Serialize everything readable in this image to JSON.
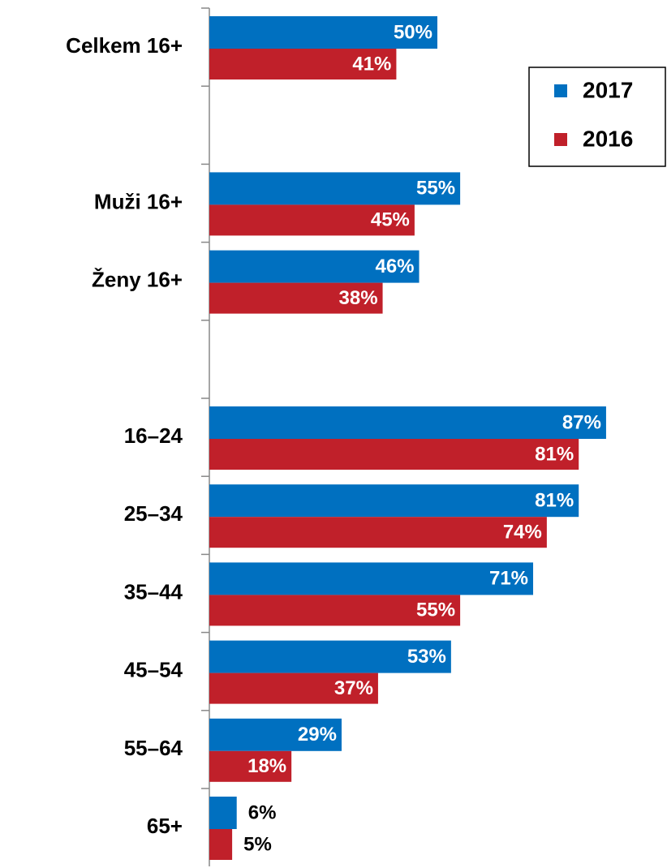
{
  "chart_data": {
    "type": "barh",
    "categories": [
      "Celkem 16+",
      null,
      "Muži 16+",
      "Ženy 16+",
      null,
      "16–24",
      "25–34",
      "35–44",
      "45–54",
      "55–64",
      "65+"
    ],
    "series": [
      {
        "name": "2017",
        "color": "#0070c0",
        "values": [
          50,
          null,
          55,
          46,
          null,
          87,
          81,
          71,
          53,
          29,
          6
        ],
        "value_labels": [
          "50%",
          null,
          "55%",
          "46%",
          null,
          "87%",
          "81%",
          "71%",
          "53%",
          "29%",
          "6%"
        ]
      },
      {
        "name": "2016",
        "color": "#c0202a",
        "values": [
          41,
          null,
          45,
          38,
          null,
          81,
          74,
          55,
          37,
          18,
          5
        ],
        "value_labels": [
          "41%",
          null,
          "45%",
          "38%",
          null,
          "81%",
          "74%",
          "55%",
          "37%",
          "18%",
          "5%"
        ]
      }
    ],
    "xlim": [
      0,
      100
    ],
    "legend": "upper right"
  }
}
